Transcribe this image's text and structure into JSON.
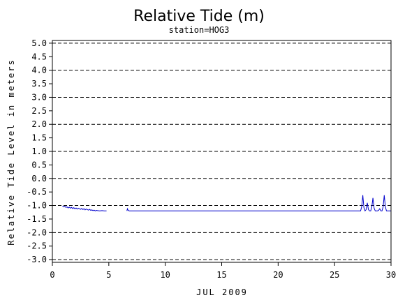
{
  "chart_data": {
    "type": "line",
    "title": "Relative Tide (m)",
    "subtitle": "station=HOG3",
    "xlabel": "JUL 2009",
    "ylabel": "Relative Tide Level in meters",
    "xlim": [
      0,
      30
    ],
    "ylim": [
      -3.1,
      5.1
    ],
    "x_ticks": [
      "0",
      "5",
      "10",
      "15",
      "20",
      "25",
      "30"
    ],
    "x_tick_values": [
      0,
      5,
      10,
      15,
      20,
      25,
      30
    ],
    "y_ticks": [
      "-3.0",
      "-2.5",
      "-2.0",
      "-1.5",
      "-1.0",
      "-0.5",
      "0.0",
      "0.5",
      "1.0",
      "1.5",
      "2.0",
      "2.5",
      "3.0",
      "3.5",
      "4.0",
      "4.5",
      "5.0"
    ],
    "y_tick_values": [
      -3.0,
      -2.5,
      -2.0,
      -1.5,
      -1.0,
      -0.5,
      0.0,
      0.5,
      1.0,
      1.5,
      2.0,
      2.5,
      3.0,
      3.5,
      4.0,
      4.5,
      5.0
    ],
    "gridlines_y": [
      -3.0,
      -2.0,
      -1.0,
      0.0,
      1.0,
      2.0,
      3.0,
      4.0,
      5.0
    ],
    "grid": "dashed horizontal at whole meters",
    "series_color": "#0000cc",
    "series": [
      {
        "segments": [
          {
            "x": [
              0.9,
              1.0,
              1.1,
              1.2,
              1.3,
              1.4,
              1.5,
              1.6,
              1.7,
              1.8,
              1.9,
              2.0,
              2.1,
              2.2,
              2.3,
              2.4,
              2.5,
              2.6,
              2.7,
              2.8,
              2.9,
              3.0,
              3.1,
              3.2,
              3.3,
              3.4,
              3.5,
              3.6,
              3.7,
              3.8,
              3.9,
              4.0,
              4.2,
              4.4,
              4.6,
              4.8
            ],
            "y": [
              -1.02,
              -1.05,
              -1.03,
              -1.07,
              -1.05,
              -1.09,
              -1.06,
              -1.1,
              -1.07,
              -1.11,
              -1.08,
              -1.12,
              -1.09,
              -1.13,
              -1.1,
              -1.12,
              -1.14,
              -1.11,
              -1.15,
              -1.12,
              -1.16,
              -1.13,
              -1.15,
              -1.17,
              -1.14,
              -1.18,
              -1.16,
              -1.19,
              -1.17,
              -1.2,
              -1.18,
              -1.19,
              -1.2,
              -1.19,
              -1.2,
              -1.2
            ]
          },
          {
            "x": [
              6.6,
              6.65,
              6.7,
              6.8
            ],
            "y": [
              -1.2,
              -1.12,
              -1.17,
              -1.2
            ]
          },
          {
            "x": [
              6.8,
              27.3,
              27.4,
              27.5,
              27.6,
              27.7,
              27.8,
              27.9,
              28.0,
              28.1,
              28.2,
              28.3,
              28.4,
              28.5,
              28.6,
              28.7,
              28.8,
              28.9,
              29.0,
              29.1,
              29.2,
              29.3,
              29.4,
              29.5,
              29.6,
              29.7,
              29.8,
              29.9,
              30.0
            ],
            "y": [
              -1.2,
              -1.2,
              -1.05,
              -0.62,
              -1.08,
              -1.2,
              -1.15,
              -0.9,
              -1.15,
              -1.2,
              -1.2,
              -1.05,
              -0.72,
              -1.1,
              -1.2,
              -1.2,
              -1.2,
              -1.18,
              -1.12,
              -1.2,
              -1.2,
              -1.05,
              -0.62,
              -1.05,
              -1.2,
              -1.2,
              -1.2,
              -1.2,
              -1.2
            ]
          }
        ]
      }
    ]
  }
}
